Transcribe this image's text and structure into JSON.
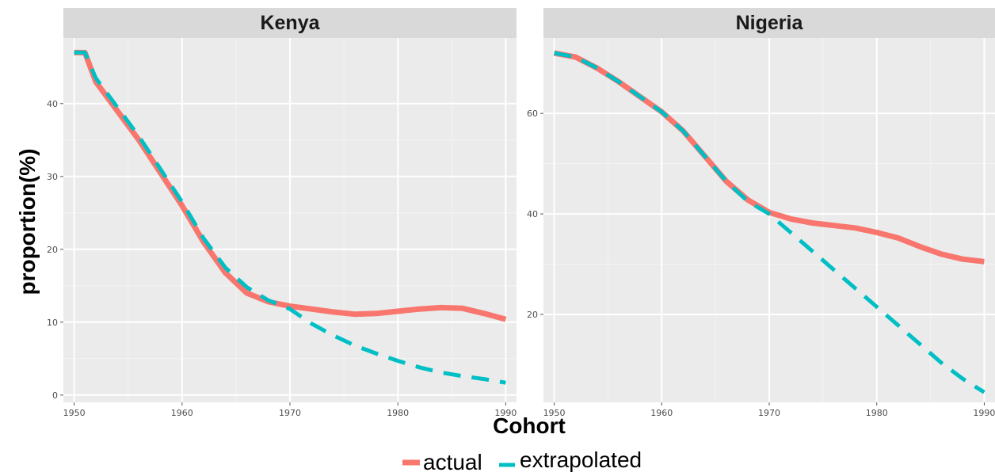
{
  "chart_data": {
    "type": "line",
    "ylabel": "proportion(%)",
    "xlabel": "Cohort",
    "legend": {
      "position": "bottom",
      "entries": [
        {
          "label": "actual",
          "color": "#F8766D",
          "style": "solid"
        },
        {
          "label": "extrapolated",
          "color": "#00BFC4",
          "style": "dashed"
        }
      ]
    },
    "grid": true,
    "panels": [
      {
        "strip": "Kenya",
        "xlim": [
          1949,
          1991
        ],
        "ylim": [
          -1,
          49
        ],
        "x_ticks": [
          1950,
          1960,
          1970,
          1980,
          1990
        ],
        "y_ticks": [
          0,
          10,
          20,
          30,
          40
        ],
        "series": [
          {
            "name": "actual",
            "x": [
              1950,
              1951,
              1952,
              1954,
              1956,
              1958,
              1960,
              1962,
              1964,
              1966,
              1968,
              1970,
              1972,
              1974,
              1976,
              1978,
              1980,
              1982,
              1984,
              1986,
              1988,
              1990
            ],
            "y": [
              47,
              47,
              43,
              39,
              35,
              30.5,
              26,
              21,
              16.8,
              14,
              12.8,
              12.2,
              11.8,
              11.4,
              11.1,
              11.2,
              11.5,
              11.8,
              12,
              11.9,
              11.2,
              10.4
            ]
          },
          {
            "name": "extrapolated",
            "x": [
              1950,
              1951,
              1952,
              1954,
              1956,
              1958,
              1960,
              1962,
              1964,
              1966,
              1968,
              1970,
              1972,
              1974,
              1976,
              1978,
              1980,
              1982,
              1984,
              1986,
              1988,
              1990
            ],
            "y": [
              47,
              47,
              43.5,
              39.5,
              35.5,
              31,
              26.5,
              21.5,
              17.5,
              14.8,
              13,
              11.8,
              9.8,
              8.2,
              6.8,
              5.7,
              4.7,
              3.8,
              3.1,
              2.6,
              2.2,
              1.7
            ]
          }
        ]
      },
      {
        "strip": "Nigeria",
        "xlim": [
          1949,
          1991
        ],
        "ylim": [
          2.5,
          75
        ],
        "x_ticks": [
          1950,
          1960,
          1970,
          1980,
          1990
        ],
        "y_ticks": [
          20,
          40,
          60
        ],
        "series": [
          {
            "name": "actual",
            "x": [
              1950,
              1952,
              1954,
              1956,
              1958,
              1960,
              1962,
              1964,
              1966,
              1968,
              1970,
              1972,
              1974,
              1976,
              1978,
              1980,
              1982,
              1984,
              1986,
              1988,
              1990
            ],
            "y": [
              72,
              71.2,
              69,
              66.3,
              63.3,
              60.3,
              56.5,
              51.5,
              46.5,
              42.8,
              40.3,
              39,
              38.2,
              37.7,
              37.2,
              36.3,
              35.2,
              33.5,
              32,
              31,
              30.5
            ]
          },
          {
            "name": "extrapolated",
            "x": [
              1950,
              1952,
              1954,
              1956,
              1958,
              1960,
              1962,
              1964,
              1966,
              1968,
              1970,
              1972,
              1974,
              1976,
              1978,
              1980,
              1982,
              1984,
              1986,
              1988,
              1990
            ],
            "y": [
              72,
              71.2,
              69,
              66.3,
              63.3,
              60.3,
              56.5,
              51.5,
              46.5,
              42.5,
              40,
              36.3,
              32.6,
              28.9,
              25.2,
              21.5,
              17.8,
              14.1,
              10.4,
              7.2,
              4.5
            ]
          }
        ]
      }
    ]
  }
}
